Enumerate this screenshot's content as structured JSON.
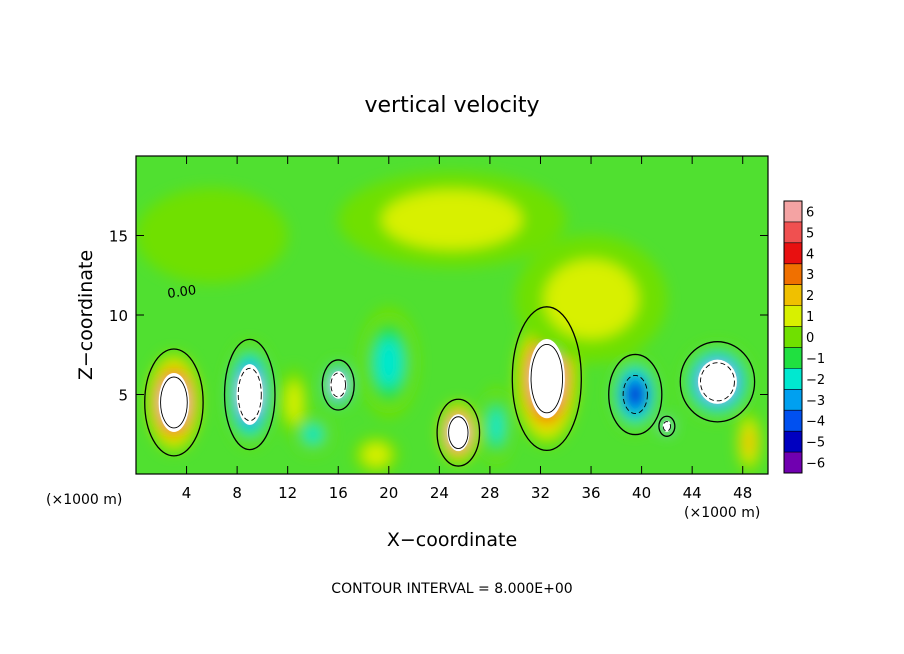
{
  "chart_data": {
    "type": "heatmap",
    "title": "vertical velocity",
    "xlabel": "X−coordinate",
    "ylabel": "Z−coordinate",
    "x_unit_left": "(×1000 m)",
    "x_unit_right": "(×1000 m)",
    "footer": "CONTOUR INTERVAL = 8.000E+00",
    "contour_label": "0.00",
    "xlim": [
      0,
      50
    ],
    "ylim": [
      0,
      20
    ],
    "x_ticks": [
      4,
      8,
      12,
      16,
      20,
      24,
      28,
      32,
      36,
      40,
      44,
      48
    ],
    "y_ticks": [
      5,
      10,
      15
    ],
    "colorbar": {
      "levels": [
        6,
        5,
        4,
        3,
        2,
        1,
        0,
        -1,
        -2,
        -3,
        -4,
        -5,
        -6
      ],
      "labels": [
        "6",
        "5",
        "4",
        "3",
        "2",
        "1",
        "0",
        "−1",
        "−2",
        "−3",
        "−4",
        "−5",
        "−6"
      ],
      "colors": [
        "#f4a3a3",
        "#f05050",
        "#e81010",
        "#f07000",
        "#f0c000",
        "#d8f000",
        "#70e000",
        "#20e040",
        "#00e8d0",
        "#00a0f0",
        "#0050f0",
        "#0000c0",
        "#7000b0"
      ]
    },
    "background_color": "#50e030",
    "cells": [
      {
        "x": 3,
        "y": 4.5,
        "rx": 2.2,
        "ry": 3.2,
        "v": 9
      },
      {
        "x": 9,
        "y": 5,
        "rx": 1.9,
        "ry": 3.3,
        "v": -9
      },
      {
        "x": 16,
        "y": 5.6,
        "rx": 1.2,
        "ry": 1.5,
        "v": -8
      },
      {
        "x": 25.5,
        "y": 2.6,
        "rx": 1.6,
        "ry": 2.0,
        "v": 8
      },
      {
        "x": 32.5,
        "y": 6.0,
        "rx": 2.6,
        "ry": 4.3,
        "v": 9
      },
      {
        "x": 39.5,
        "y": 5.0,
        "rx": 2.0,
        "ry": 2.4,
        "v": -5
      },
      {
        "x": 42,
        "y": 3,
        "rx": 0.6,
        "ry": 0.6,
        "v": -7
      },
      {
        "x": 46,
        "y": 5.8,
        "rx": 2.8,
        "ry": 2.4,
        "v": -8
      },
      {
        "x": 12.5,
        "y": 4.5,
        "rx": 1.1,
        "ry": 2.2,
        "v": 1.5
      },
      {
        "x": 20,
        "y": 7,
        "rx": 2.3,
        "ry": 3.5,
        "v": -2.5
      },
      {
        "x": 14,
        "y": 2.5,
        "rx": 1.5,
        "ry": 1.2,
        "v": -2
      },
      {
        "x": 28.5,
        "y": 3,
        "rx": 1.2,
        "ry": 2.5,
        "v": -2.5
      },
      {
        "x": 48.5,
        "y": 2,
        "rx": 1.0,
        "ry": 2.0,
        "v": 2
      },
      {
        "x": 19,
        "y": 1.2,
        "rx": 1.8,
        "ry": 1.2,
        "v": 1.5
      },
      {
        "x": 36,
        "y": 11,
        "rx": 6.0,
        "ry": 4.0,
        "v": 1.2
      },
      {
        "x": 25,
        "y": 16,
        "rx": 9.0,
        "ry": 3.0,
        "v": 1.0
      },
      {
        "x": 6,
        "y": 15,
        "rx": 6.0,
        "ry": 3.0,
        "v": 0.8
      }
    ]
  }
}
